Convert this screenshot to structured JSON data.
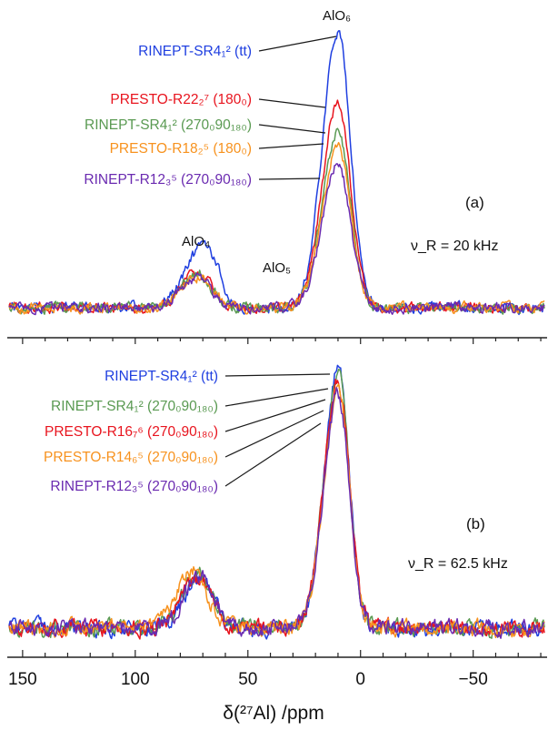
{
  "chart_data": [
    {
      "type": "line",
      "panel_label": "(a)",
      "mas_label": "ν_R = 20 kHz",
      "peak_labels": [
        {
          "text": "AlO₆",
          "x_ppm": 10
        },
        {
          "text": "AlO₅",
          "x_ppm": 35
        },
        {
          "text": "AlO₄",
          "x_ppm": 73
        }
      ],
      "series": [
        {
          "name": "RINEPT-SR4₁² (tt)",
          "color": "#1f3fe0",
          "peak_height": 1.0,
          "peaks": [
            {
              "center": 10,
              "width": 5.5,
              "height": 1.0
            },
            {
              "center": 72,
              "width": 6,
              "height": 0.18
            },
            {
              "center": 65,
              "width": 4,
              "height": 0.09
            }
          ]
        },
        {
          "name": "PRESTO-R22₂⁷ (180₀)",
          "color": "#e8141e",
          "peak_height": 0.75,
          "peaks": [
            {
              "center": 10,
              "width": 5.5,
              "height": 0.75
            },
            {
              "center": 72,
              "width": 6,
              "height": 0.13
            }
          ]
        },
        {
          "name": "RINEPT-SR4₁² (270₀90₁₈₀)",
          "color": "#5a9a52",
          "peak_height": 0.64,
          "peaks": [
            {
              "center": 10,
              "width": 5.5,
              "height": 0.64
            },
            {
              "center": 72,
              "width": 6,
              "height": 0.12
            }
          ]
        },
        {
          "name": "PRESTO-R18₂⁵ (180₀)",
          "color": "#f7921e",
          "peak_height": 0.59,
          "peaks": [
            {
              "center": 10,
              "width": 5.5,
              "height": 0.59
            },
            {
              "center": 72,
              "width": 6,
              "height": 0.11
            }
          ]
        },
        {
          "name": "RINEPT-R12₃⁵ (270₀90₁₈₀)",
          "color": "#6a2ab0",
          "peak_height": 0.52,
          "peaks": [
            {
              "center": 10,
              "width": 5.5,
              "height": 0.52
            },
            {
              "center": 72,
              "width": 6,
              "height": 0.11
            }
          ]
        }
      ]
    },
    {
      "type": "line",
      "panel_label": "(b)",
      "mas_label": "ν_R = 62.5 kHz",
      "series": [
        {
          "name": "RINEPT-SR4₁² (tt)",
          "color": "#1f3fe0",
          "peak_height": 1.0,
          "peaks": [
            {
              "center": 10,
              "width": 5,
              "height": 1.0
            },
            {
              "center": 71,
              "width": 6,
              "height": 0.2
            }
          ]
        },
        {
          "name": "RINEPT-SR4₁² (270₀90₁₈₀)",
          "color": "#5a9a52",
          "peak_height": 0.97,
          "peaks": [
            {
              "center": 10,
              "width": 5,
              "height": 0.97
            },
            {
              "center": 72,
              "width": 6,
              "height": 0.2
            }
          ]
        },
        {
          "name": "PRESTO-R16₇⁶ (270₀90₁₈₀)",
          "color": "#e8141e",
          "peak_height": 0.95,
          "peaks": [
            {
              "center": 10,
              "width": 5,
              "height": 0.95
            },
            {
              "center": 72,
              "width": 6,
              "height": 0.19
            }
          ]
        },
        {
          "name": "PRESTO-R14₆⁵ (270₀90₁₈₀)",
          "color": "#f7921e",
          "peak_height": 0.93,
          "peaks": [
            {
              "center": 10,
              "width": 5,
              "height": 0.93
            },
            {
              "center": 74,
              "width": 6,
              "height": 0.22
            }
          ]
        },
        {
          "name": "RINEPT-R12₃⁵ (270₀90₁₈₀)",
          "color": "#6a2ab0",
          "peak_height": 0.9,
          "peaks": [
            {
              "center": 10,
              "width": 5,
              "height": 0.9
            },
            {
              "center": 71,
              "width": 6,
              "height": 0.19
            }
          ]
        }
      ]
    }
  ],
  "x_axis": {
    "label": "δ(²⁷Al) /ppm",
    "xlim": [
      156,
      -82
    ],
    "reversed": true,
    "ticks": [
      150,
      100,
      50,
      0,
      -50
    ],
    "tick_labels": [
      "150",
      "100",
      "50",
      "0",
      "−50"
    ]
  }
}
